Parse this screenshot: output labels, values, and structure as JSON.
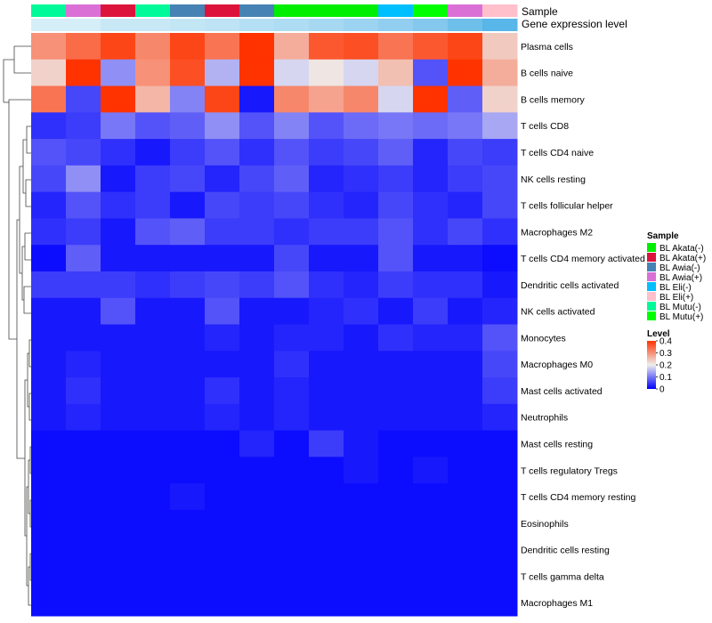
{
  "annotation_labels": {
    "sample": "Sample",
    "gene_expression": "Gene expression level"
  },
  "legend": {
    "sample_title": "Sample",
    "sample_entries": [
      {
        "label": "BL Akata(-)",
        "color": "#00EE00"
      },
      {
        "label": "BL Akata(+)",
        "color": "#DC143C"
      },
      {
        "label": "BL Awia(-)",
        "color": "#4682B4"
      },
      {
        "label": "BL Awia(+)",
        "color": "#DA70D6"
      },
      {
        "label": "BL Eli(-)",
        "color": "#00BFFF"
      },
      {
        "label": "BL Eli(+)",
        "color": "#FFC0CB"
      },
      {
        "label": "BL Mutu(-)",
        "color": "#00FA9A"
      },
      {
        "label": "BL Mutu(+)",
        "color": "#00FF00"
      }
    ],
    "level_title": "Level",
    "level_ticks": [
      "0.4",
      "0.3",
      "0.2",
      "0.1",
      "0"
    ],
    "level_colors": {
      "low": "#0000FF",
      "mid": "#EEEEEE",
      "high": "#FF3300"
    }
  },
  "chart_data": {
    "type": "heatmap",
    "value_range": [
      0,
      0.4
    ],
    "sample_annotation": [
      "BL Mutu(-)",
      "BL Awia(+)",
      "BL Akata(+)",
      "BL Mutu(-)",
      "BL Awia(-)",
      "BL Akata(+)",
      "BL Awia(-)",
      "BL Akata(-)",
      "BL Akata(-)",
      "BL Akata(-)",
      "BL Eli(-)",
      "BL Mutu(+)",
      "BL Awia(+)",
      "BL Eli(+)"
    ],
    "gene_expression_colors": [
      "#D6EEF8",
      "#D6EEF8",
      "#C8E8F6",
      "#C8E8F6",
      "#C3E6F5",
      "#BDE3F5",
      "#B5DFF4",
      "#ADDCF3",
      "#A6D8F2",
      "#9CD3F0",
      "#92CEEF",
      "#84C8ED",
      "#6EBFEA",
      "#58B6E8"
    ],
    "rows": [
      "Plasma cells",
      "B cells naive",
      "B cells memory",
      "T cells CD8",
      "T cells CD4 naive",
      "NK cells resting",
      "T cells follicular helper",
      "Macrophages M2",
      "T cells CD4 memory activated",
      "Dendritic cells activated",
      "NK cells activated",
      "Monocytes",
      "Macrophages M0",
      "Mast cells activated",
      "Neutrophils",
      "Mast cells resting",
      "T cells regulatory  Tregs",
      "T cells CD4 memory resting",
      "Eosinophils",
      "Dendritic cells resting",
      "T cells gamma delta",
      "Macrophages M1"
    ],
    "values": [
      [
        0.3,
        0.34,
        0.38,
        0.31,
        0.38,
        0.33,
        0.4,
        0.27,
        0.36,
        0.37,
        0.33,
        0.36,
        0.38,
        0.24
      ],
      [
        0.23,
        0.42,
        0.12,
        0.3,
        0.37,
        0.15,
        0.42,
        0.18,
        0.21,
        0.18,
        0.25,
        0.07,
        0.42,
        0.27
      ],
      [
        0.33,
        0.06,
        0.42,
        0.26,
        0.11,
        0.38,
        0.02,
        0.31,
        0.28,
        0.31,
        0.18,
        0.42,
        0.08,
        0.23
      ],
      [
        0.04,
        0.05,
        0.1,
        0.07,
        0.08,
        0.12,
        0.07,
        0.11,
        0.07,
        0.09,
        0.1,
        0.09,
        0.1,
        0.14
      ],
      [
        0.07,
        0.06,
        0.04,
        0.02,
        0.05,
        0.07,
        0.04,
        0.07,
        0.05,
        0.06,
        0.08,
        0.03,
        0.06,
        0.05
      ],
      [
        0.06,
        0.12,
        0.02,
        0.05,
        0.06,
        0.03,
        0.06,
        0.08,
        0.03,
        0.04,
        0.05,
        0.03,
        0.05,
        0.06
      ],
      [
        0.03,
        0.07,
        0.04,
        0.05,
        0.02,
        0.06,
        0.05,
        0.06,
        0.04,
        0.03,
        0.06,
        0.04,
        0.03,
        0.06
      ],
      [
        0.04,
        0.05,
        0.02,
        0.07,
        0.08,
        0.05,
        0.05,
        0.04,
        0.05,
        0.05,
        0.07,
        0.04,
        0.06,
        0.04
      ],
      [
        0.01,
        0.08,
        0.02,
        0.02,
        0.02,
        0.02,
        0.02,
        0.06,
        0.02,
        0.02,
        0.07,
        0.02,
        0.02,
        0.01
      ],
      [
        0.05,
        0.05,
        0.05,
        0.04,
        0.05,
        0.06,
        0.05,
        0.07,
        0.04,
        0.03,
        0.05,
        0.04,
        0.04,
        0.02
      ],
      [
        0.02,
        0.02,
        0.07,
        0.02,
        0.02,
        0.07,
        0.02,
        0.02,
        0.03,
        0.04,
        0.02,
        0.05,
        0.02,
        0.03
      ],
      [
        0.02,
        0.02,
        0.02,
        0.02,
        0.02,
        0.03,
        0.02,
        0.03,
        0.03,
        0.02,
        0.04,
        0.03,
        0.03,
        0.07
      ],
      [
        0.02,
        0.03,
        0.02,
        0.02,
        0.02,
        0.02,
        0.02,
        0.04,
        0.02,
        0.02,
        0.02,
        0.02,
        0.02,
        0.06
      ],
      [
        0.02,
        0.04,
        0.02,
        0.02,
        0.02,
        0.04,
        0.02,
        0.03,
        0.02,
        0.02,
        0.02,
        0.02,
        0.02,
        0.05
      ],
      [
        0.02,
        0.03,
        0.02,
        0.02,
        0.02,
        0.03,
        0.02,
        0.03,
        0.02,
        0.02,
        0.02,
        0.02,
        0.02,
        0.03
      ],
      [
        0.01,
        0.01,
        0.01,
        0.01,
        0.01,
        0.01,
        0.03,
        0.01,
        0.05,
        0.02,
        0.01,
        0.01,
        0.01,
        0.01
      ],
      [
        0.01,
        0.01,
        0.01,
        0.01,
        0.01,
        0.01,
        0.01,
        0.01,
        0.01,
        0.02,
        0.01,
        0.02,
        0.01,
        0.01
      ],
      [
        0.01,
        0.01,
        0.01,
        0.01,
        0.02,
        0.01,
        0.01,
        0.01,
        0.01,
        0.01,
        0.01,
        0.01,
        0.01,
        0.01
      ],
      [
        0.01,
        0.01,
        0.01,
        0.01,
        0.01,
        0.01,
        0.01,
        0.01,
        0.01,
        0.01,
        0.01,
        0.01,
        0.01,
        0.01
      ],
      [
        0.01,
        0.01,
        0.01,
        0.01,
        0.01,
        0.01,
        0.01,
        0.01,
        0.01,
        0.01,
        0.01,
        0.01,
        0.01,
        0.01
      ],
      [
        0.01,
        0.01,
        0.01,
        0.01,
        0.01,
        0.01,
        0.01,
        0.01,
        0.01,
        0.01,
        0.01,
        0.01,
        0.01,
        0.01
      ],
      [
        0.01,
        0.01,
        0.01,
        0.01,
        0.01,
        0.01,
        0.01,
        0.01,
        0.01,
        0.01,
        0.01,
        0.01,
        0.01,
        0.01
      ]
    ]
  }
}
